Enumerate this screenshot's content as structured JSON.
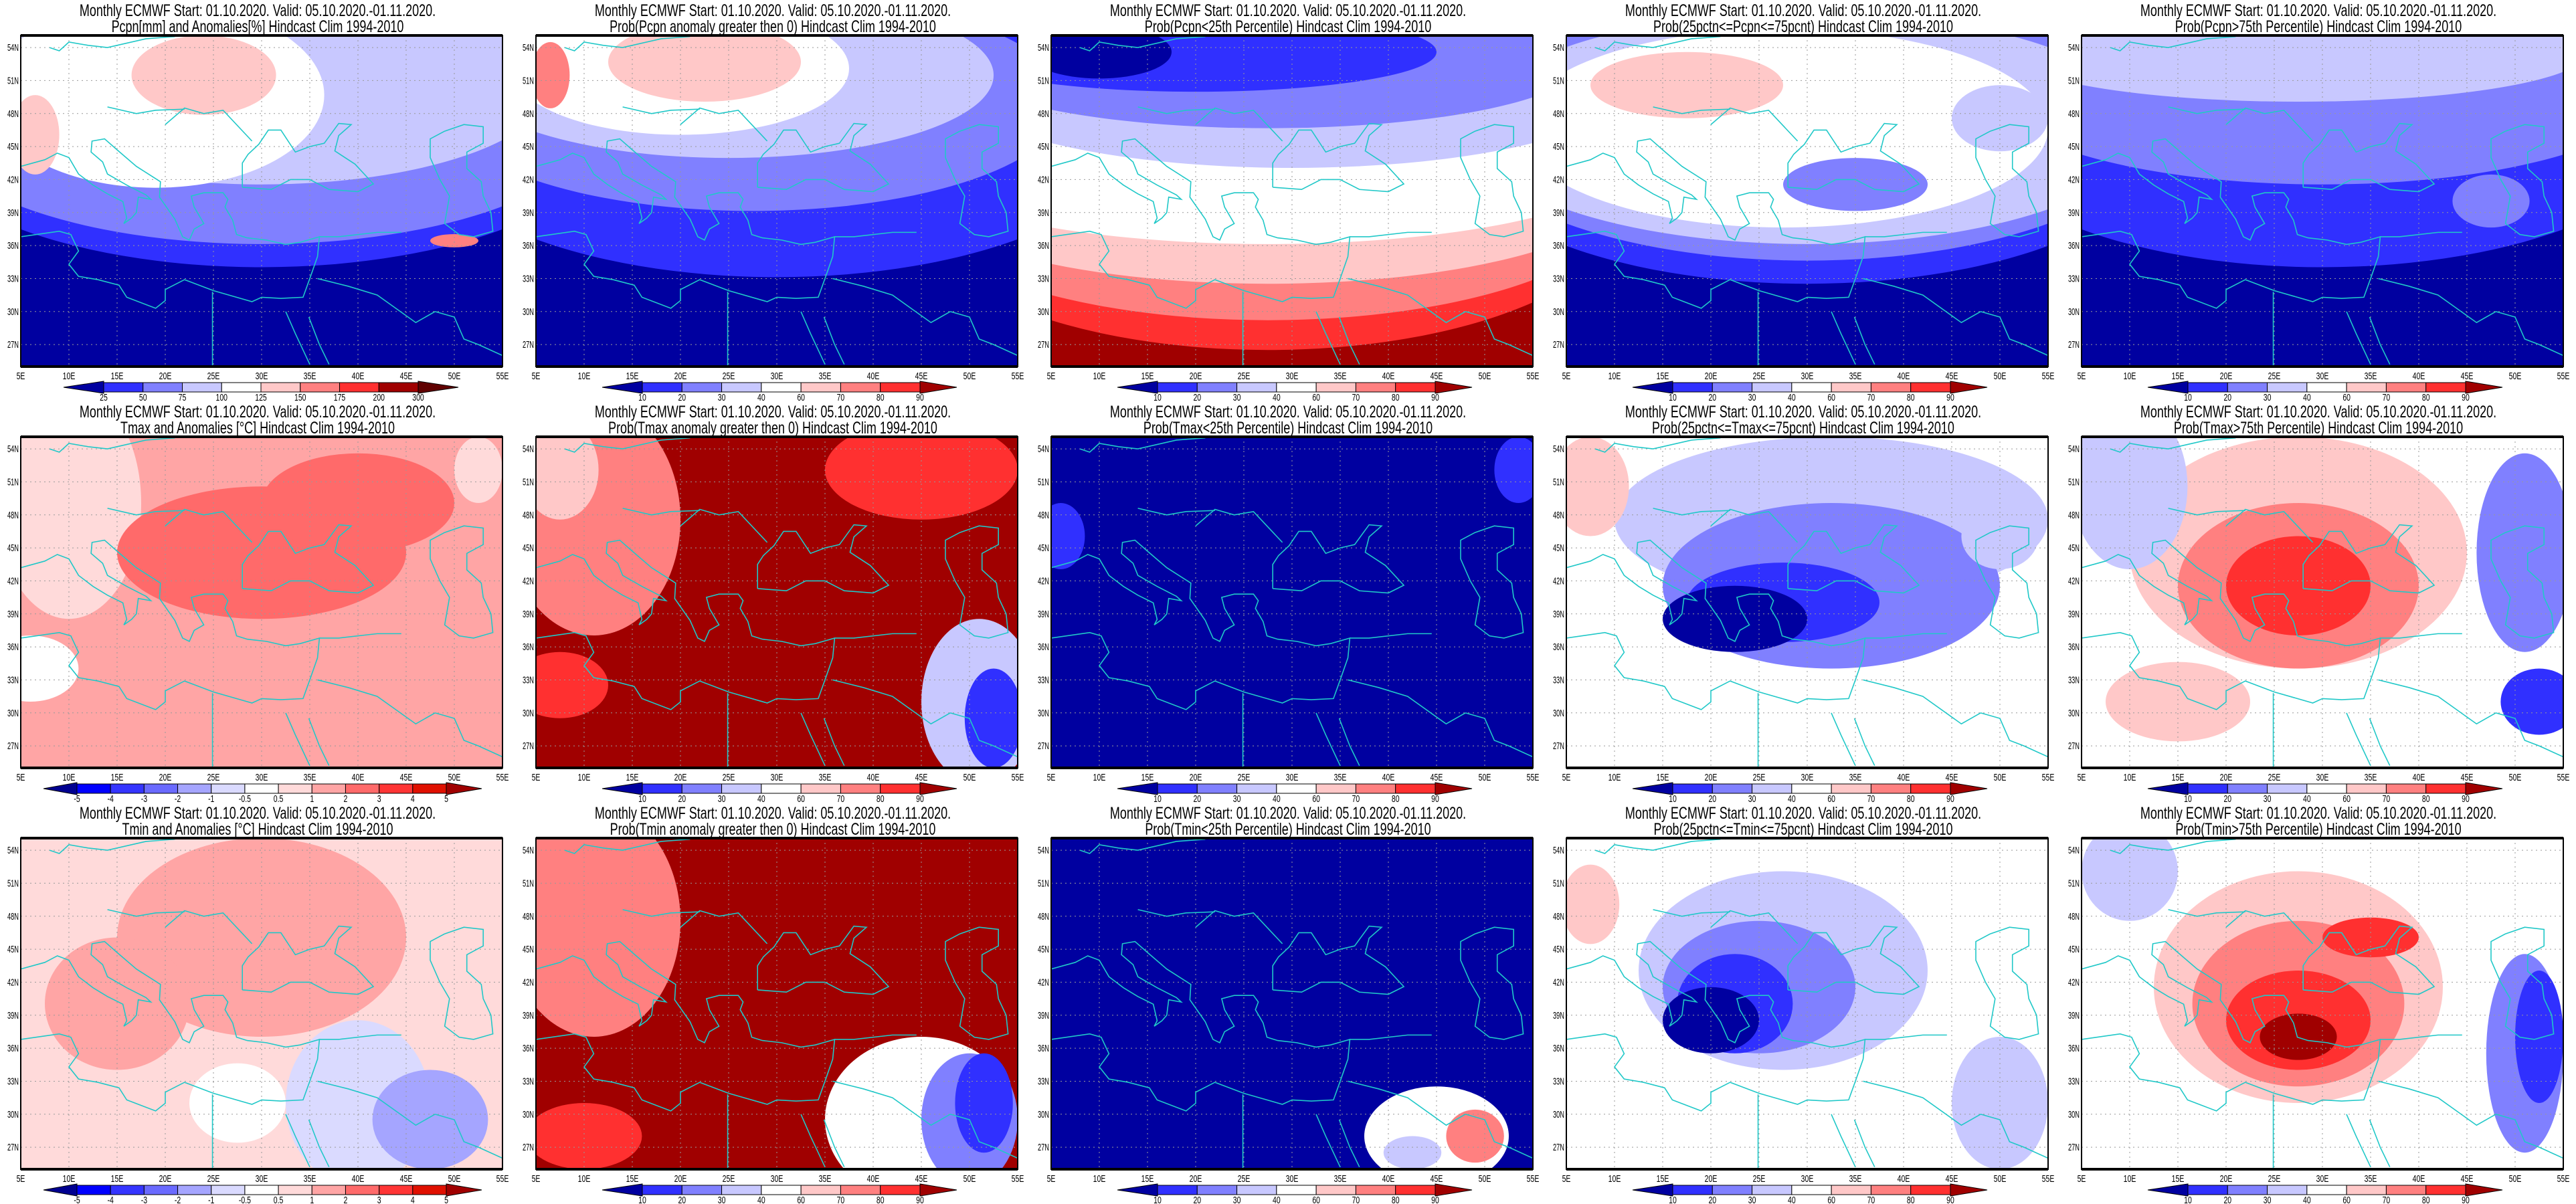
{
  "header_line": "Monthly ECMWF Start: 01.10.2020. Valid: 05.10.2020.-01.11.2020.",
  "x_ticks": [
    "5E",
    "10E",
    "15E",
    "20E",
    "25E",
    "30E",
    "35E",
    "40E",
    "45E",
    "50E",
    "55E"
  ],
  "y_ticks": [
    "54N",
    "51N",
    "48N",
    "45N",
    "42N",
    "39N",
    "36N",
    "33N",
    "30N",
    "27N"
  ],
  "map_extent": {
    "lon": [
      5,
      55
    ],
    "lat": [
      25,
      55.1
    ]
  },
  "colorbars": {
    "pcpn_anom": {
      "labels": [
        "25",
        "50",
        "75",
        "100",
        "125",
        "150",
        "175",
        "200",
        "300"
      ],
      "low": "#0000a0",
      "high": "#600000",
      "colors": [
        "#3030ff",
        "#8080ff",
        "#c8c8ff",
        "#ffffff",
        "#ffc8c8",
        "#ff8080",
        "#ff3030",
        "#a00000"
      ]
    },
    "prob": {
      "labels": [
        "10",
        "20",
        "30",
        "40",
        "60",
        "70",
        "80",
        "90"
      ],
      "low": "#0000a0",
      "high": "#a00000",
      "colors": [
        "#3030ff",
        "#8080ff",
        "#c8c8ff",
        "#ffffff",
        "#ffc8c8",
        "#ff8080",
        "#ff3030"
      ]
    },
    "temp_anom": {
      "labels": [
        "-5",
        "-4",
        "-3",
        "-2",
        "-1",
        "-0.5",
        "0.5",
        "1",
        "2",
        "3",
        "4",
        "5"
      ],
      "low": "#000090",
      "high": "#a00000",
      "colors": [
        "#0000ff",
        "#3535ff",
        "#6a6aff",
        "#a5a5ff",
        "#dadaff",
        "#ffffff",
        "#ffdada",
        "#ffa5a5",
        "#ff6a6a",
        "#ff3535",
        "#e01000"
      ]
    }
  },
  "chart_data": [
    {
      "type": "heatmap",
      "title": "Pcpn[mm] and Anomalies[%] Hindcast Clim 1994-2010",
      "colorbar": "pcpn_anom"
    },
    {
      "type": "heatmap",
      "title": "Prob(Pcpn anomaly greater then 0) Hindcast Clim 1994-2010",
      "colorbar": "prob"
    },
    {
      "type": "heatmap",
      "title": "Prob(Pcpn<25th Percentile) Hindcast Clim 1994-2010",
      "colorbar": "prob"
    },
    {
      "type": "heatmap",
      "title": "Prob(25pctn<=Pcpn<=75pcnt) Hindcast Clim 1994-2010",
      "colorbar": "prob"
    },
    {
      "type": "heatmap",
      "title": "Prob(Pcpn>75th Percentile) Hindcast Clim 1994-2010",
      "colorbar": "prob"
    },
    {
      "type": "heatmap",
      "title": "Tmax and Anomalies [°C] Hindcast Clim 1994-2010",
      "colorbar": "temp_anom"
    },
    {
      "type": "heatmap",
      "title": "Prob(Tmax anomaly greater then 0) Hindcast Clim 1994-2010",
      "colorbar": "prob"
    },
    {
      "type": "heatmap",
      "title": "Prob(Tmax<25th Percentile) Hindcast Clim 1994-2010",
      "colorbar": "prob"
    },
    {
      "type": "heatmap",
      "title": "Prob(25pctn<=Tmax<=75pcnt) Hindcast Clim 1994-2010",
      "colorbar": "prob"
    },
    {
      "type": "heatmap",
      "title": "Prob(Tmax>75th Percentile) Hindcast Clim 1994-2010",
      "colorbar": "prob"
    },
    {
      "type": "heatmap",
      "title": "Tmin and Anomalies [°C] Hindcast Clim 1994-2010",
      "colorbar": "temp_anom"
    },
    {
      "type": "heatmap",
      "title": "Prob(Tmin anomaly greater then 0) Hindcast Clim 1994-2010",
      "colorbar": "prob"
    },
    {
      "type": "heatmap",
      "title": "Prob(Tmin<25th Percentile) Hindcast Clim 1994-2010",
      "colorbar": "prob"
    },
    {
      "type": "heatmap",
      "title": "Prob(25pctn<=Tmin<=75pcnt) Hindcast Clim 1994-2010",
      "colorbar": "prob"
    },
    {
      "type": "heatmap",
      "title": "Prob(Tmin>75th Percentile) Hindcast Clim 1994-2010",
      "colorbar": "prob"
    }
  ]
}
